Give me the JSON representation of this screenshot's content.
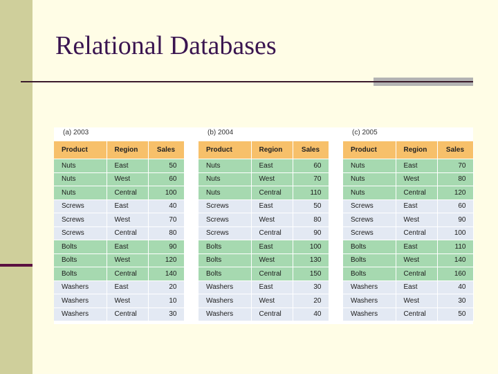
{
  "slide": {
    "title": "Relational Databases"
  },
  "columns": [
    "Product",
    "Region",
    "Sales"
  ],
  "panels": [
    {
      "caption": "(a) 2003",
      "rows": [
        [
          "Nuts",
          "East",
          "50"
        ],
        [
          "Nuts",
          "West",
          "60"
        ],
        [
          "Nuts",
          "Central",
          "100"
        ],
        [
          "Screws",
          "East",
          "40"
        ],
        [
          "Screws",
          "West",
          "70"
        ],
        [
          "Screws",
          "Central",
          "80"
        ],
        [
          "Bolts",
          "East",
          "90"
        ],
        [
          "Bolts",
          "West",
          "120"
        ],
        [
          "Bolts",
          "Central",
          "140"
        ],
        [
          "Washers",
          "East",
          "20"
        ],
        [
          "Washers",
          "West",
          "10"
        ],
        [
          "Washers",
          "Central",
          "30"
        ]
      ]
    },
    {
      "caption": "(b) 2004",
      "rows": [
        [
          "Nuts",
          "East",
          "60"
        ],
        [
          "Nuts",
          "West",
          "70"
        ],
        [
          "Nuts",
          "Central",
          "110"
        ],
        [
          "Screws",
          "East",
          "50"
        ],
        [
          "Screws",
          "West",
          "80"
        ],
        [
          "Screws",
          "Central",
          "90"
        ],
        [
          "Bolts",
          "East",
          "100"
        ],
        [
          "Bolts",
          "West",
          "130"
        ],
        [
          "Bolts",
          "Central",
          "150"
        ],
        [
          "Washers",
          "East",
          "30"
        ],
        [
          "Washers",
          "West",
          "20"
        ],
        [
          "Washers",
          "Central",
          "40"
        ]
      ]
    },
    {
      "caption": "(c) 2005",
      "rows": [
        [
          "Nuts",
          "East",
          "70"
        ],
        [
          "Nuts",
          "West",
          "80"
        ],
        [
          "Nuts",
          "Central",
          "120"
        ],
        [
          "Screws",
          "East",
          "60"
        ],
        [
          "Screws",
          "West",
          "90"
        ],
        [
          "Screws",
          "Central",
          "100"
        ],
        [
          "Bolts",
          "East",
          "110"
        ],
        [
          "Bolts",
          "West",
          "140"
        ],
        [
          "Bolts",
          "Central",
          "160"
        ],
        [
          "Washers",
          "East",
          "40"
        ],
        [
          "Washers",
          "West",
          "30"
        ],
        [
          "Washers",
          "Central",
          "50"
        ]
      ]
    }
  ]
}
